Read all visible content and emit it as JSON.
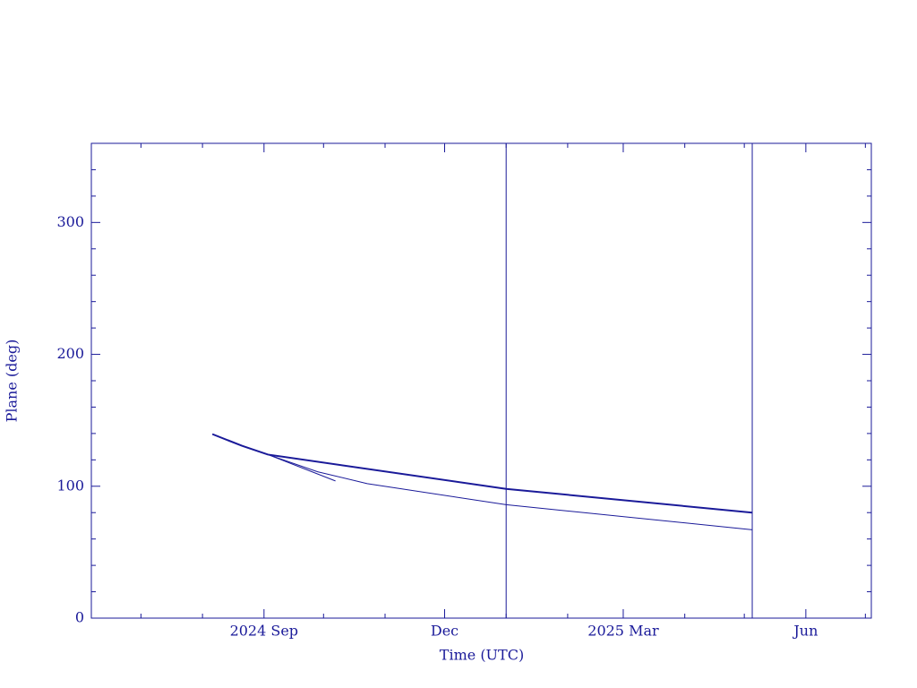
{
  "chart_data": {
    "type": "line",
    "x_label": "Time (UTC)",
    "y_label": "Plane (deg)",
    "xlim": [
      "2024-06-06",
      "2025-07-04"
    ],
    "xticks": [
      {
        "value": "2024-09-01",
        "label": "2024 Sep"
      },
      {
        "value": "2024-12-01",
        "label": "Dec"
      },
      {
        "value": "2025-03-01",
        "label": "2025 Mar"
      },
      {
        "value": "2025-06-01",
        "label": "Jun"
      }
    ],
    "xminorticks": [
      "2024-07-01",
      "2024-08-01",
      "2024-10-01",
      "2024-11-01",
      "2025-01-01",
      "2025-02-01",
      "2025-04-01",
      "2025-05-01",
      "2025-07-01"
    ],
    "ylim": [
      0,
      360
    ],
    "yticks": [
      0,
      100,
      200,
      300
    ],
    "yminorticks": [
      20,
      40,
      60,
      80,
      120,
      140,
      160,
      180,
      220,
      240,
      260,
      280,
      320,
      340
    ],
    "vlines": [
      "2025-01-01",
      "2025-05-05"
    ],
    "color": "#1a1a99",
    "series": [
      {
        "color": "#1a1a99",
        "width": 2,
        "x": [
          "2024-08-06",
          "2024-08-21",
          "2024-09-03",
          "2025-01-01",
          "2025-05-05"
        ],
        "values": [
          139.5,
          130.6,
          124,
          98,
          80
        ]
      },
      {
        "color": "#1a1a99",
        "width": 1,
        "x": [
          "2024-08-06",
          "2024-08-21",
          "2024-09-03",
          "2024-09-28",
          "2024-10-23",
          "2025-01-01",
          "2025-05-05"
        ],
        "values": [
          139.5,
          130.6,
          124,
          111,
          102,
          86,
          67
        ]
      },
      {
        "color": "#1a1a99",
        "width": 1,
        "x": [
          "2024-09-03",
          "2024-10-07"
        ],
        "values": [
          124,
          104
        ]
      }
    ]
  }
}
